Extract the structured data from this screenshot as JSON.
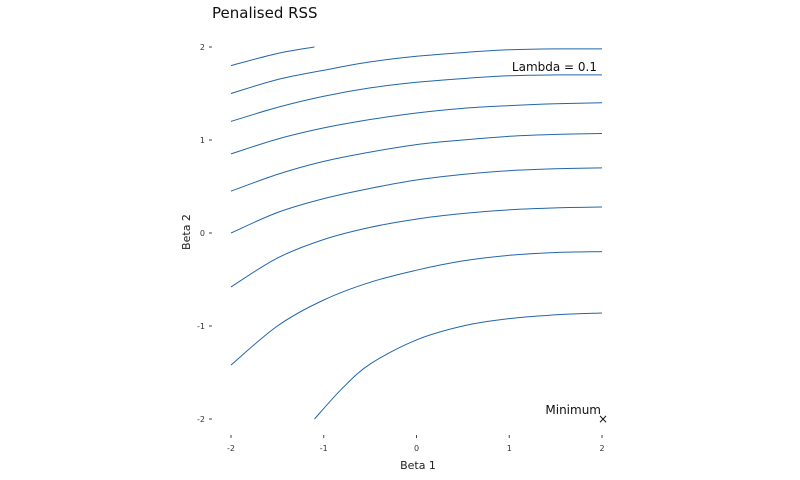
{
  "chart_data": {
    "type": "line",
    "title": "Penalised RSS",
    "xlabel": "Beta 1",
    "ylabel": "Beta 2",
    "xlim": [
      -2,
      2
    ],
    "ylim": [
      -2,
      2
    ],
    "xticks": [
      -2,
      -1,
      0,
      1,
      2
    ],
    "yticks": [
      -2,
      -1,
      0,
      1,
      2
    ],
    "grid": false,
    "legend": "none",
    "line_color": "#2166ac",
    "annotations": {
      "lambda_label": "Lambda = 0.1",
      "minimum_label": "Minimum",
      "minimum_marker": "×",
      "minimum_point": [
        2,
        -2
      ]
    },
    "contours": [
      {
        "points": [
          [
            -2,
            1.8
          ],
          [
            -1.5,
            1.93
          ],
          [
            -1.1,
            2.0
          ]
        ]
      },
      {
        "points": [
          [
            -2,
            1.5
          ],
          [
            -1.5,
            1.65
          ],
          [
            -1,
            1.75
          ],
          [
            -0.5,
            1.84
          ],
          [
            0,
            1.9
          ],
          [
            0.5,
            1.94
          ],
          [
            1,
            1.97
          ],
          [
            1.5,
            1.98
          ],
          [
            2,
            1.98
          ]
        ]
      },
      {
        "points": [
          [
            -2,
            1.2
          ],
          [
            -1.5,
            1.35
          ],
          [
            -1,
            1.47
          ],
          [
            -0.5,
            1.56
          ],
          [
            0,
            1.62
          ],
          [
            0.5,
            1.66
          ],
          [
            1,
            1.69
          ],
          [
            1.5,
            1.7
          ],
          [
            2,
            1.7
          ]
        ]
      },
      {
        "points": [
          [
            -2,
            0.85
          ],
          [
            -1.5,
            1.01
          ],
          [
            -1,
            1.13
          ],
          [
            -0.5,
            1.22
          ],
          [
            0,
            1.29
          ],
          [
            0.5,
            1.34
          ],
          [
            1,
            1.37
          ],
          [
            1.5,
            1.39
          ],
          [
            2,
            1.4
          ]
        ]
      },
      {
        "points": [
          [
            -2,
            0.45
          ],
          [
            -1.5,
            0.63
          ],
          [
            -1,
            0.77
          ],
          [
            -0.5,
            0.87
          ],
          [
            0,
            0.95
          ],
          [
            0.5,
            1.0
          ],
          [
            1,
            1.04
          ],
          [
            1.5,
            1.06
          ],
          [
            2,
            1.07
          ]
        ]
      },
      {
        "points": [
          [
            -2,
            0.0
          ],
          [
            -1.5,
            0.22
          ],
          [
            -1,
            0.37
          ],
          [
            -0.5,
            0.48
          ],
          [
            0,
            0.57
          ],
          [
            0.5,
            0.63
          ],
          [
            1,
            0.67
          ],
          [
            1.5,
            0.69
          ],
          [
            2,
            0.7
          ]
        ]
      },
      {
        "points": [
          [
            -2,
            -0.58
          ],
          [
            -1.5,
            -0.27
          ],
          [
            -1,
            -0.07
          ],
          [
            -0.5,
            0.06
          ],
          [
            0,
            0.15
          ],
          [
            0.5,
            0.21
          ],
          [
            1,
            0.25
          ],
          [
            1.5,
            0.27
          ],
          [
            2,
            0.28
          ]
        ]
      },
      {
        "points": [
          [
            -2,
            -1.42
          ],
          [
            -1.5,
            -1.0
          ],
          [
            -1,
            -0.72
          ],
          [
            -0.5,
            -0.53
          ],
          [
            0,
            -0.4
          ],
          [
            0.5,
            -0.3
          ],
          [
            1,
            -0.24
          ],
          [
            1.5,
            -0.21
          ],
          [
            2,
            -0.2
          ]
        ]
      },
      {
        "points": [
          [
            -1.1,
            -2.0
          ],
          [
            -0.8,
            -1.67
          ],
          [
            -0.5,
            -1.41
          ],
          [
            0,
            -1.15
          ],
          [
            0.5,
            -1.0
          ],
          [
            1,
            -0.92
          ],
          [
            1.5,
            -0.88
          ],
          [
            2,
            -0.86
          ]
        ]
      }
    ]
  }
}
